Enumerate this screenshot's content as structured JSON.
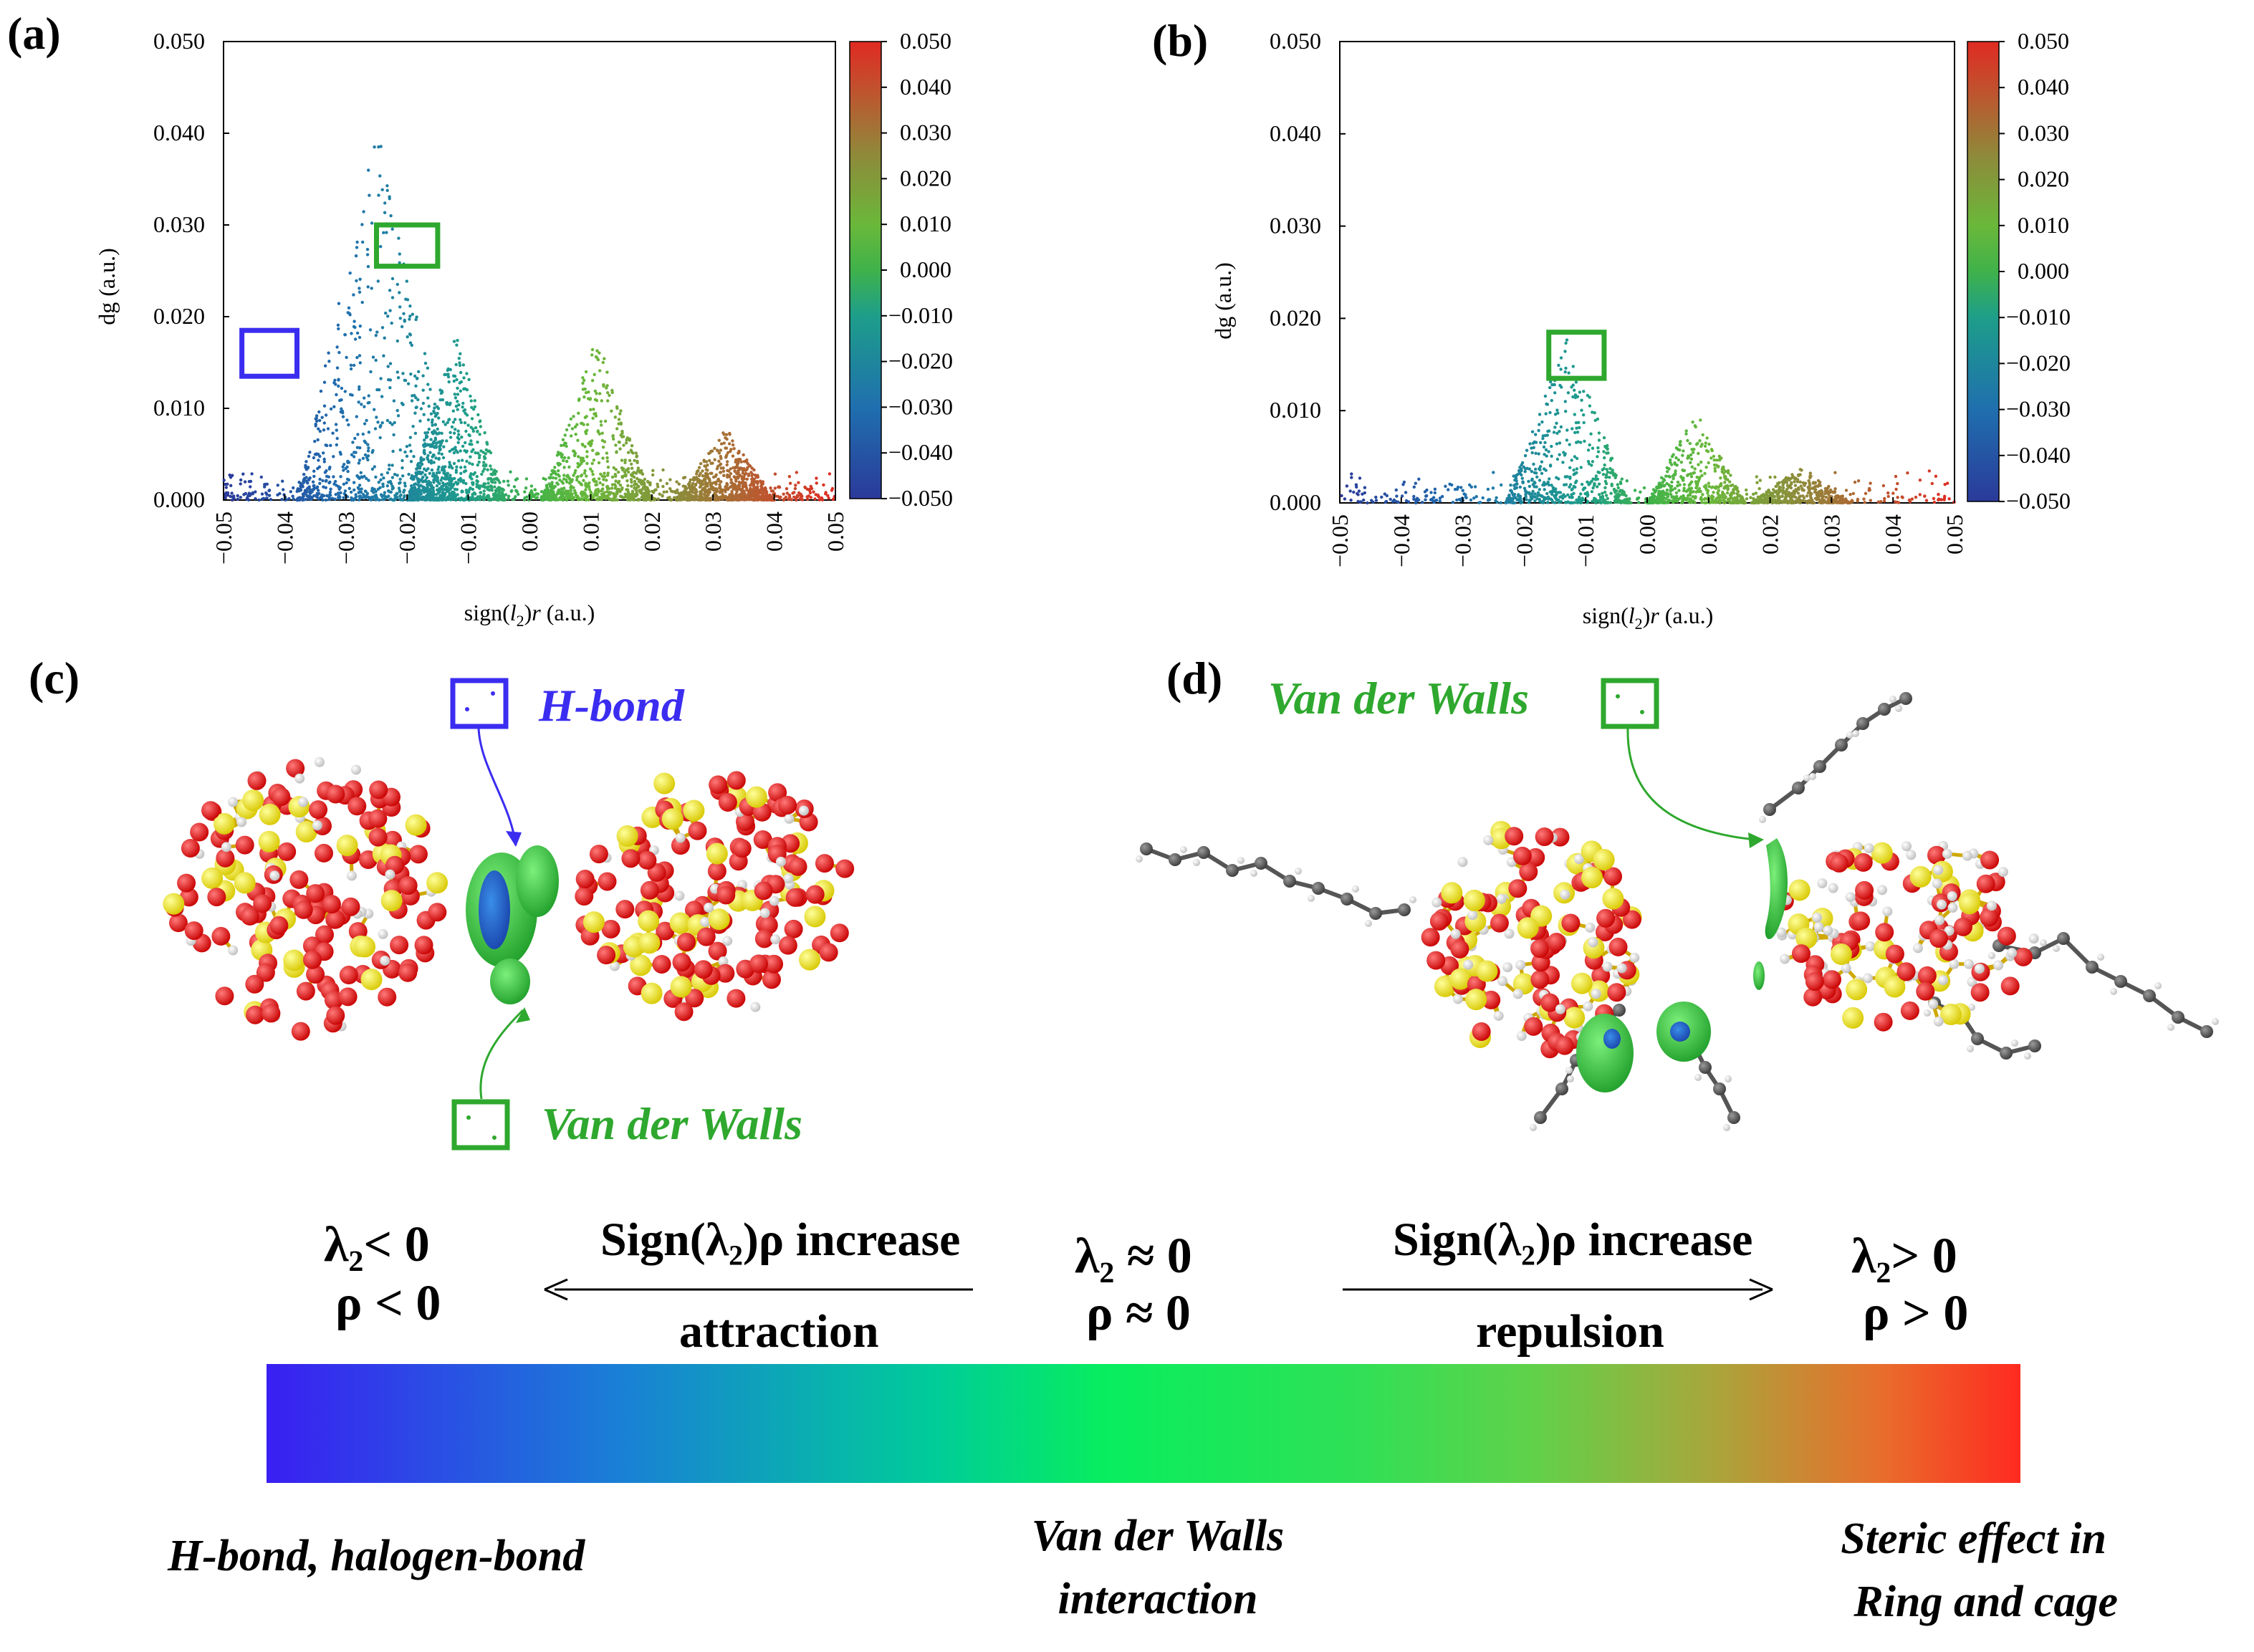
{
  "figure": {
    "panels": {
      "a": "(a)",
      "b": "(b)",
      "c": "(c)",
      "d": "(d)"
    }
  },
  "chart_data": [
    {
      "id": "a",
      "type": "scatter",
      "title": "",
      "xlabel": "sign(l2)r (a.u.)",
      "ylabel": "dg (a.u.)",
      "xlim": [
        -0.05,
        0.05
      ],
      "ylim": [
        0,
        0.05
      ],
      "x_ticks": [
        "−0.05",
        "−0.04",
        "−0.03",
        "−0.02",
        "−0.01",
        "0.00",
        "0.01",
        "0.02",
        "0.03",
        "0.04",
        "0.05"
      ],
      "y_ticks": [
        "0.000",
        "0.010",
        "0.020",
        "0.030",
        "0.040",
        "0.050"
      ],
      "colorbar": {
        "min": -0.05,
        "max": 0.05,
        "ticks": [
          "0.050",
          "0.040",
          "0.030",
          "0.020",
          "0.010",
          "0.000",
          "−0.010",
          "−0.020",
          "−0.030",
          "−0.040",
          "−0.050"
        ]
      },
      "peaks": [
        {
          "center": -0.025,
          "height": 0.041,
          "width": 0.013
        },
        {
          "center": -0.012,
          "height": 0.018,
          "width": 0.008
        },
        {
          "center": 0.011,
          "height": 0.018,
          "width": 0.009
        },
        {
          "center": 0.032,
          "height": 0.008,
          "width": 0.008
        }
      ],
      "highlights": [
        {
          "label": "H-bond",
          "x": [
            -0.047,
            -0.038
          ],
          "y": [
            0.0135,
            0.0185
          ],
          "color": "#3b2df0"
        },
        {
          "label": "Van der Walls",
          "x": [
            -0.025,
            -0.015
          ],
          "y": [
            0.0255,
            0.03
          ],
          "color": "#2ea82e"
        }
      ]
    },
    {
      "id": "b",
      "type": "scatter",
      "title": "",
      "xlabel": "sign(l2)r (a.u.)",
      "ylabel": "dg (a.u.)",
      "xlim": [
        -0.05,
        0.05
      ],
      "ylim": [
        0,
        0.05
      ],
      "x_ticks": [
        "−0.05",
        "−0.04",
        "−0.03",
        "−0.02",
        "−0.01",
        "0.00",
        "0.01",
        "0.02",
        "0.03",
        "0.04",
        "0.05"
      ],
      "y_ticks": [
        "0.000",
        "0.010",
        "0.020",
        "0.030",
        "0.040",
        "0.050"
      ],
      "colorbar": {
        "min": -0.05,
        "max": 0.05,
        "ticks": [
          "0.050",
          "0.040",
          "0.030",
          "0.020",
          "0.010",
          "0.000",
          "−0.010",
          "−0.020",
          "−0.030",
          "−0.040",
          "−0.050"
        ]
      },
      "peaks": [
        {
          "center": -0.013,
          "height": 0.018,
          "width": 0.01
        },
        {
          "center": 0.008,
          "height": 0.01,
          "width": 0.008
        },
        {
          "center": 0.025,
          "height": 0.004,
          "width": 0.008
        }
      ],
      "highlights": [
        {
          "label": "Van der Walls",
          "x": [
            -0.016,
            -0.007
          ],
          "y": [
            0.0135,
            0.0185
          ],
          "color": "#2ea82e"
        }
      ]
    }
  ],
  "annotations": {
    "c_hbond": "H-bond",
    "c_vdw": "Van der Walls",
    "d_vdw": "Van der Walls"
  },
  "legend": {
    "left_math_1": "λ₂< 0",
    "left_math_2": "ρ < 0",
    "left_arrow_top": "Sign(λ₂)ρ increase",
    "left_arrow_bottom": "attraction",
    "center_math_1": "λ₂ ≈ 0",
    "center_math_2": "ρ ≈ 0",
    "right_arrow_top": "Sign(λ₂)ρ increase",
    "right_arrow_bottom": "repulsion",
    "right_math_1": "λ₂> 0",
    "right_math_2": "ρ > 0",
    "bottom_left": "H-bond, halogen-bond",
    "bottom_center_1": "Van der Walls",
    "bottom_center_2": "interaction",
    "bottom_right_1": "Steric effect in",
    "bottom_right_2": "Ring and cage",
    "colors": [
      "#3a1ff2",
      "#1a7fd6",
      "#00d38a",
      "#0ff25a",
      "#4cd64a",
      "#e08a30",
      "#ff2a20"
    ]
  }
}
